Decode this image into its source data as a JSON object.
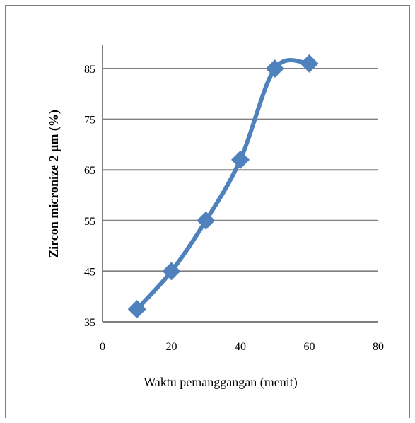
{
  "chart_data": {
    "type": "line",
    "title": "",
    "xlabel": "Waktu pemanggangan (menit)",
    "ylabel": "Zircon micronize 2 µm (%)",
    "xlim": [
      0,
      80
    ],
    "ylim": [
      35,
      90
    ],
    "xticks": [
      "0",
      "20",
      "40",
      "60",
      "80"
    ],
    "yticks": [
      "35",
      "45",
      "55",
      "65",
      "75",
      "85"
    ],
    "grid": "horizontal",
    "legend": "none",
    "line_style": "smoothed",
    "marker": "diamond",
    "colors": {
      "series": "#4f81bd",
      "grid": "#808080",
      "axis": "#808080",
      "frame": "#7f7f7f"
    },
    "series": [
      {
        "x": [
          10,
          20,
          30,
          40,
          50,
          60
        ],
        "values": [
          37.5,
          45,
          55,
          67,
          85,
          86
        ]
      }
    ]
  }
}
